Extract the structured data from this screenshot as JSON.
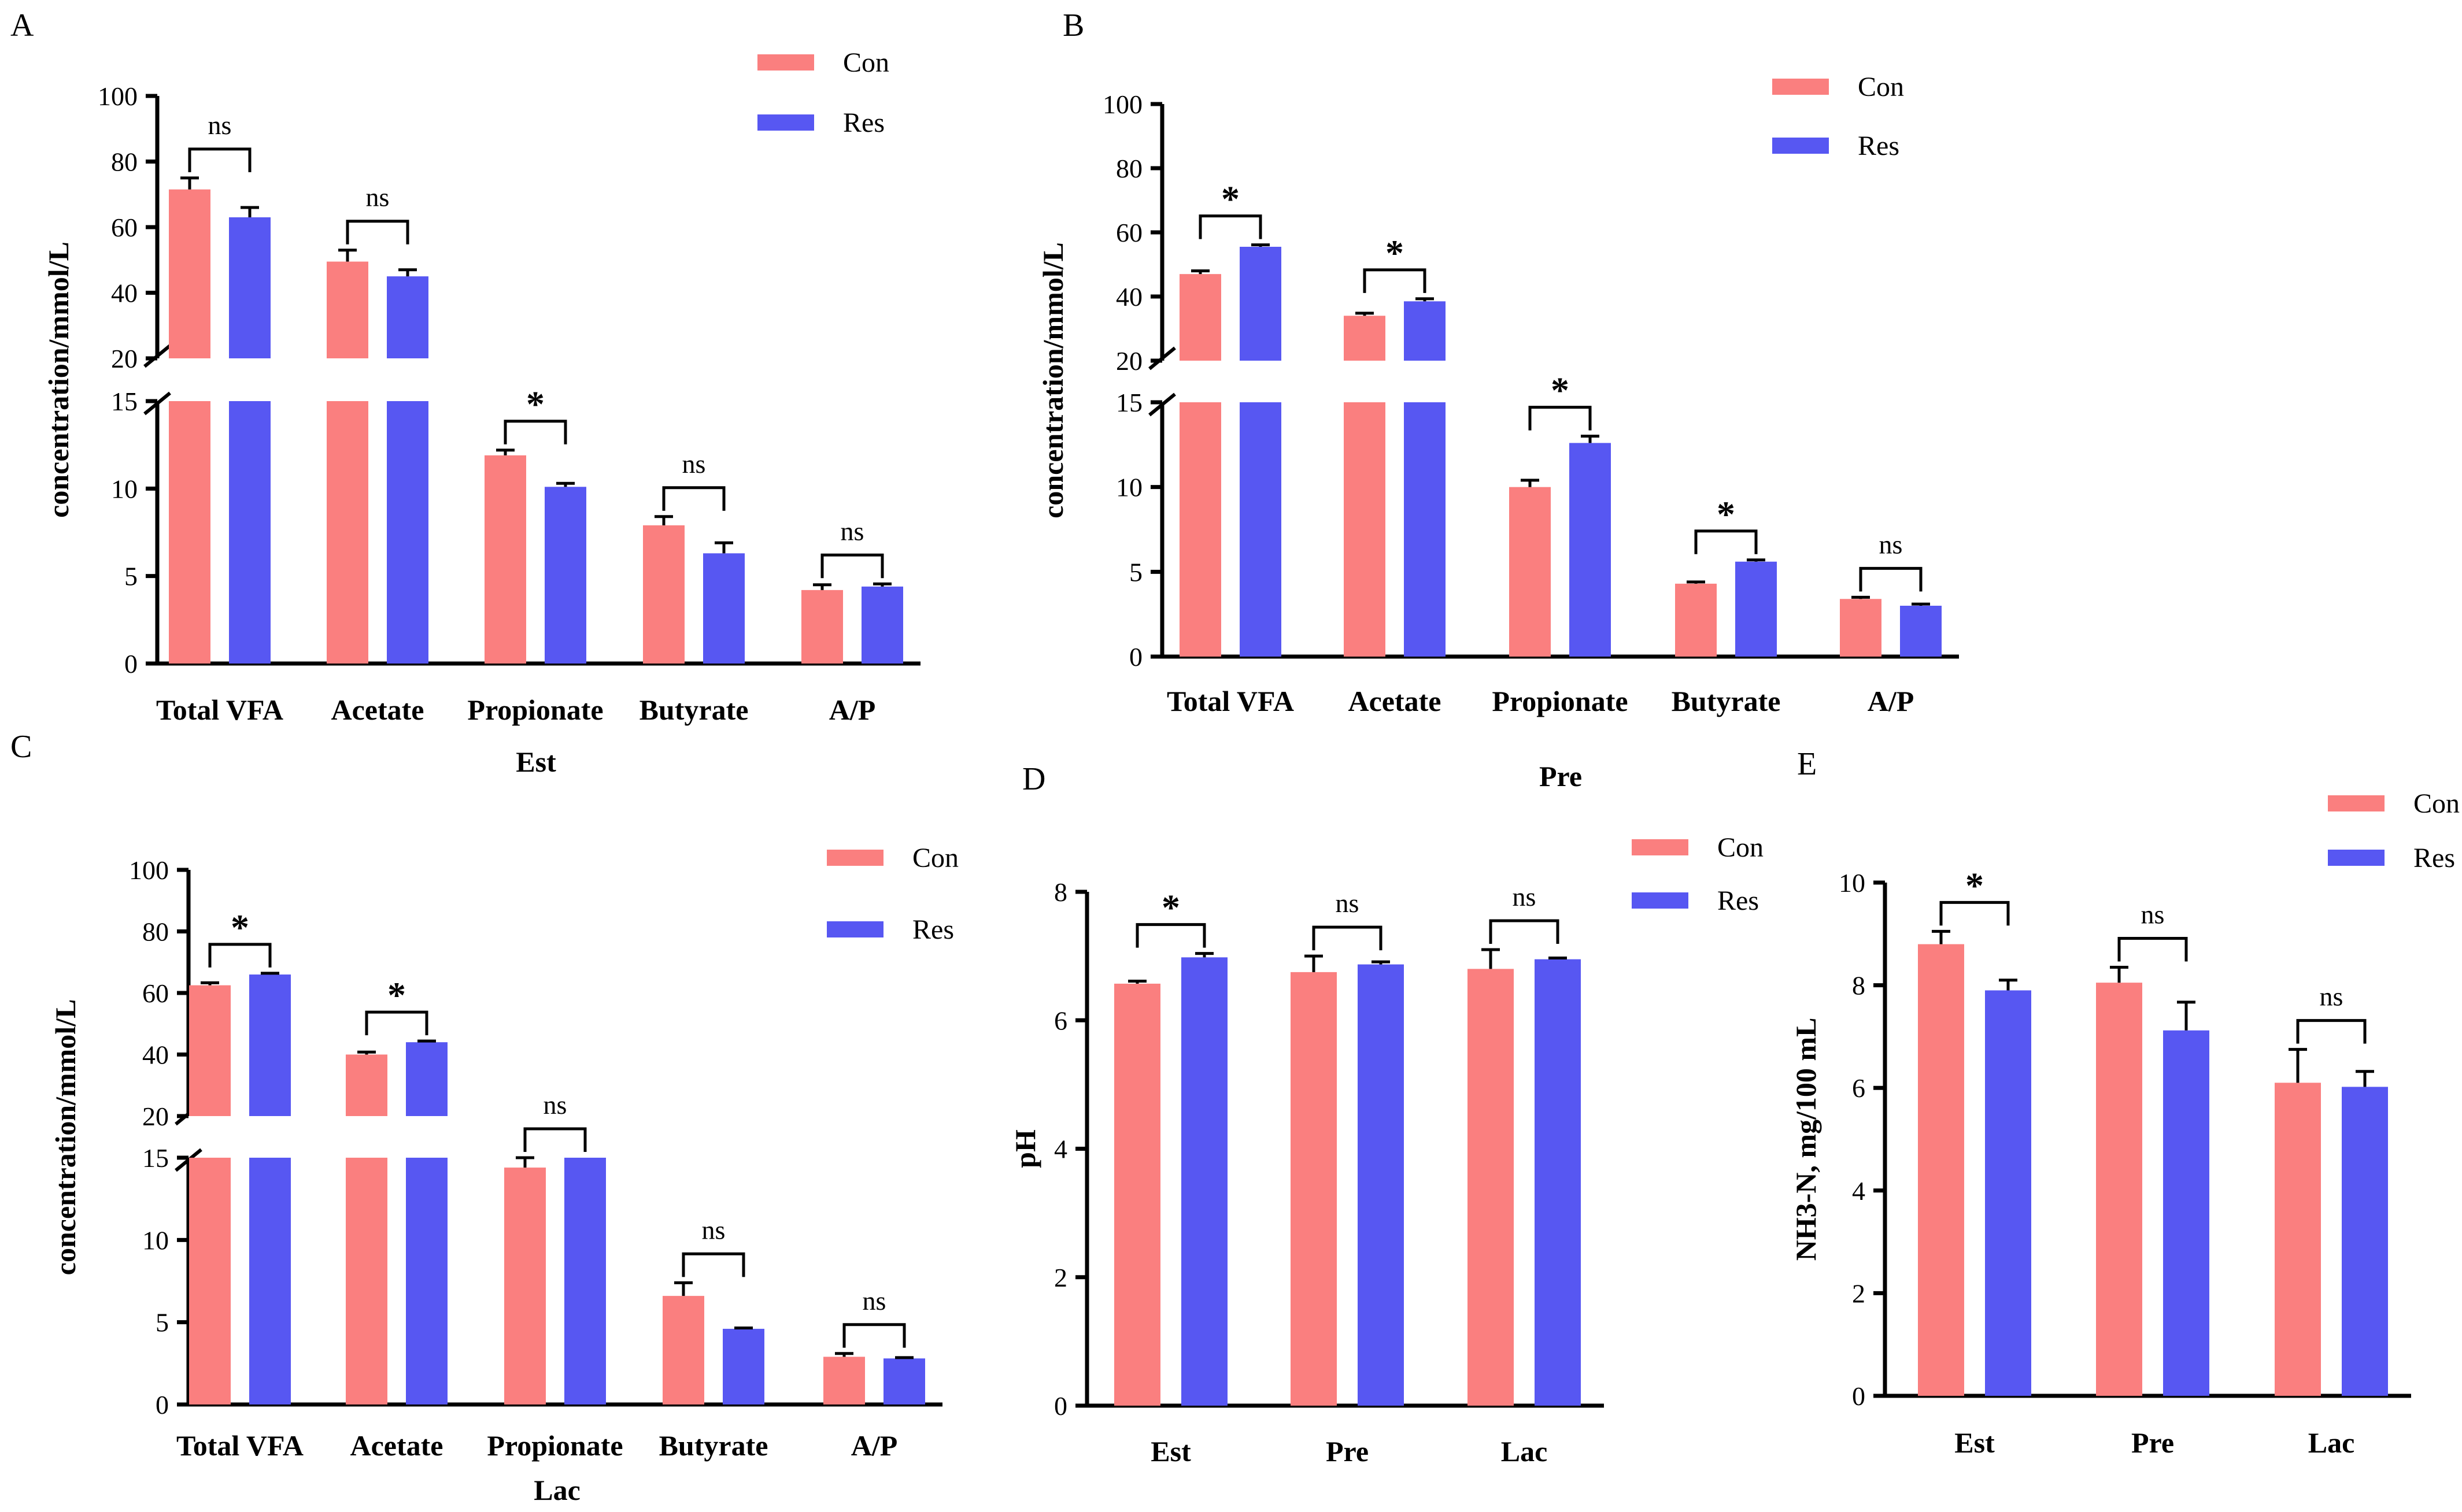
{
  "colors": {
    "con": "#FA7F7F",
    "res": "#5757F2"
  },
  "legend": {
    "con": "Con",
    "res": "Res"
  },
  "chart_data": [
    {
      "id": "A",
      "panel_label": "A",
      "type": "bar",
      "broken_axis": true,
      "title": "",
      "xlabel": "Est",
      "ylabel": "concentration/mmol/L",
      "ylim": [
        0,
        100
      ],
      "lower_range": [
        0,
        15
      ],
      "upper_range": [
        20,
        100
      ],
      "yticks_lower": [
        "0",
        "5",
        "10",
        "15"
      ],
      "yticks_upper": [
        "20",
        "40",
        "60",
        "80",
        "100"
      ],
      "categories": [
        "Total VFA",
        "Acetate",
        "Propionate",
        "Butyrate",
        "A/P"
      ],
      "series": [
        {
          "name": "Con",
          "values": [
            71.5,
            49.5,
            11.9,
            7.9,
            4.2
          ],
          "errors": [
            3.5,
            3.5,
            0.3,
            0.5,
            0.3
          ]
        },
        {
          "name": "Res",
          "values": [
            63.0,
            45.0,
            10.1,
            6.3,
            4.4
          ],
          "errors": [
            3.0,
            2.0,
            0.2,
            0.6,
            0.15
          ]
        }
      ],
      "significance": [
        "ns",
        "ns",
        "*",
        "ns",
        "ns"
      ]
    },
    {
      "id": "B",
      "panel_label": "B",
      "type": "bar",
      "broken_axis": true,
      "title": "",
      "xlabel": "Pre",
      "ylabel": "concentration/mmol/L",
      "ylim": [
        0,
        100
      ],
      "lower_range": [
        0,
        15
      ],
      "upper_range": [
        20,
        100
      ],
      "yticks_lower": [
        "0",
        "5",
        "10",
        "15"
      ],
      "yticks_upper": [
        "20",
        "40",
        "60",
        "80",
        "100"
      ],
      "categories": [
        "Total VFA",
        "Acetate",
        "Propionate",
        "Butyrate",
        "A/P"
      ],
      "series": [
        {
          "name": "Con",
          "values": [
            47.0,
            34.0,
            10.0,
            4.3,
            3.4
          ],
          "errors": [
            1.0,
            0.8,
            0.4,
            0.1,
            0.1
          ]
        },
        {
          "name": "Res",
          "values": [
            55.5,
            38.5,
            12.6,
            5.6,
            3.0
          ],
          "errors": [
            0.6,
            0.8,
            0.4,
            0.1,
            0.1
          ]
        }
      ],
      "significance": [
        "*",
        "*",
        "*",
        "*",
        "ns"
      ]
    },
    {
      "id": "C",
      "panel_label": "C",
      "type": "bar",
      "broken_axis": true,
      "title": "",
      "xlabel": "Lac",
      "ylabel": "concentration/mmol/L",
      "ylim": [
        0,
        100
      ],
      "lower_range": [
        0,
        15
      ],
      "upper_range": [
        20,
        100
      ],
      "yticks_lower": [
        "0",
        "5",
        "10",
        "15"
      ],
      "yticks_upper": [
        "20",
        "40",
        "60",
        "80",
        "100"
      ],
      "categories": [
        "Total VFA",
        "Acetate",
        "Propionate",
        "Butyrate",
        "A/P"
      ],
      "series": [
        {
          "name": "Con",
          "values": [
            62.5,
            40.0,
            14.4,
            6.6,
            2.9
          ],
          "errors": [
            0.8,
            0.8,
            0.6,
            0.8,
            0.2
          ]
        },
        {
          "name": "Res",
          "values": [
            66.0,
            44.0,
            15.0,
            4.6,
            2.8
          ],
          "errors": [
            0.4,
            0.4,
            0.0,
            0.05,
            0.05
          ]
        }
      ],
      "significance": [
        "*",
        "*",
        "ns",
        "ns",
        "ns"
      ]
    },
    {
      "id": "D",
      "panel_label": "D",
      "type": "bar",
      "broken_axis": false,
      "title": "",
      "xlabel": "",
      "ylabel": "pH",
      "ylim": [
        0,
        8
      ],
      "yticks": [
        "0",
        "2",
        "4",
        "6",
        "8"
      ],
      "categories": [
        "Est",
        "Pre",
        "Lac"
      ],
      "series": [
        {
          "name": "Con",
          "values": [
            6.57,
            6.75,
            6.8
          ],
          "errors": [
            0.04,
            0.25,
            0.3
          ]
        },
        {
          "name": "Res",
          "values": [
            6.98,
            6.87,
            6.95
          ],
          "errors": [
            0.06,
            0.04,
            0.02
          ]
        }
      ],
      "significance": [
        "*",
        "ns",
        "ns"
      ]
    },
    {
      "id": "E",
      "panel_label": "E",
      "type": "bar",
      "broken_axis": false,
      "title": "",
      "xlabel": "",
      "ylabel": "NH3-N, mg/100 mL",
      "ylim": [
        0,
        10
      ],
      "yticks": [
        "0",
        "2",
        "4",
        "6",
        "8",
        "10"
      ],
      "categories": [
        "Est",
        "Pre",
        "Lac"
      ],
      "series": [
        {
          "name": "Con",
          "values": [
            8.8,
            8.05,
            6.1
          ],
          "errors": [
            0.25,
            0.3,
            0.65
          ]
        },
        {
          "name": "Res",
          "values": [
            7.9,
            7.12,
            6.02
          ],
          "errors": [
            0.2,
            0.55,
            0.3
          ]
        }
      ],
      "significance": [
        "*",
        "ns",
        "ns"
      ]
    }
  ]
}
